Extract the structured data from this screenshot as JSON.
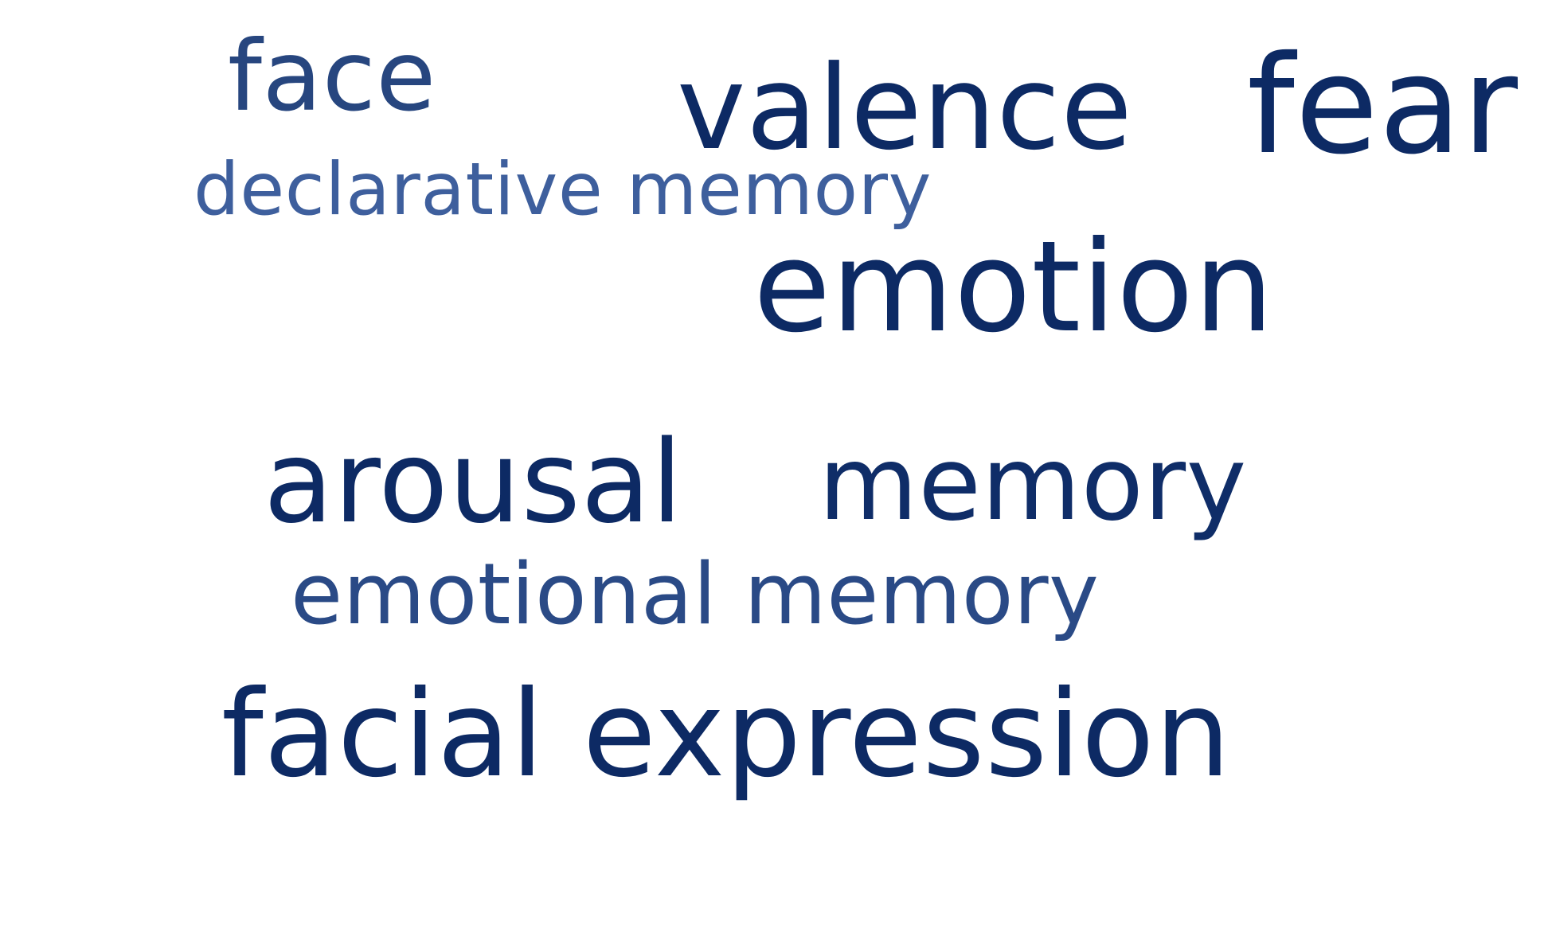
{
  "word_cloud": {
    "words": [
      {
        "text": "face",
        "color": "#27467f"
      },
      {
        "text": "valence",
        "color": "#0d2a64"
      },
      {
        "text": "fear",
        "color": "#0d2a64"
      },
      {
        "text": "declarative memory",
        "color": "#3e5f9d"
      },
      {
        "text": "emotion",
        "color": "#0d2a64"
      },
      {
        "text": "arousal",
        "color": "#0d2a64"
      },
      {
        "text": "memory",
        "color": "#0f2d68"
      },
      {
        "text": "emotional memory",
        "color": "#2a4a86"
      },
      {
        "text": "facial expression",
        "color": "#0d2a64"
      }
    ]
  }
}
